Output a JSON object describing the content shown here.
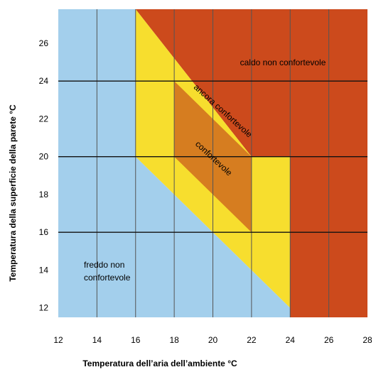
{
  "chart_data": {
    "type": "area",
    "xlabel": "Temperatura dell’aria dell’ambiente °C",
    "ylabel": "Temperatura della superficie della parete °C",
    "xlim": [
      12,
      28
    ],
    "ylim": [
      11.5,
      27.8
    ],
    "xticks": [
      12,
      14,
      16,
      18,
      20,
      22,
      24,
      26,
      28
    ],
    "yticks": [
      12,
      14,
      16,
      18,
      20,
      22,
      24,
      26
    ],
    "grid": true,
    "colors": {
      "cold": "#a3cfec",
      "hot": "#cc4a1c",
      "still": "#f7de2e",
      "comfort": "#d67d20",
      "grid": "#555555"
    },
    "regions": [
      {
        "id": "cold",
        "label": "freddo non confortevole",
        "polygon": [
          [
            12,
            11.5
          ],
          [
            12,
            27.8
          ],
          [
            16,
            27.8
          ],
          [
            16,
            20
          ],
          [
            24,
            12
          ],
          [
            24,
            11.5
          ]
        ]
      },
      {
        "id": "hot",
        "label": "caldo non confortevole",
        "polygon": [
          [
            16,
            27.8
          ],
          [
            28,
            27.8
          ],
          [
            28,
            11.5
          ],
          [
            24,
            11.5
          ],
          [
            24,
            20
          ],
          [
            22,
            20
          ]
        ]
      },
      {
        "id": "still",
        "label": "ancora confortevole",
        "polygon": [
          [
            16,
            27.8
          ],
          [
            22,
            20
          ],
          [
            24,
            20
          ],
          [
            24,
            12
          ],
          [
            16,
            20
          ]
        ]
      },
      {
        "id": "comfort",
        "label": "confortevole",
        "polygon": [
          [
            18,
            24
          ],
          [
            22,
            20
          ],
          [
            22,
            16
          ],
          [
            18,
            20
          ]
        ]
      }
    ],
    "labels": {
      "hot": "caldo non confortevole",
      "still": "ancora confortevole",
      "comfort": "confortevole",
      "cold_line1": "freddo non",
      "cold_line2": "confortevole"
    }
  }
}
